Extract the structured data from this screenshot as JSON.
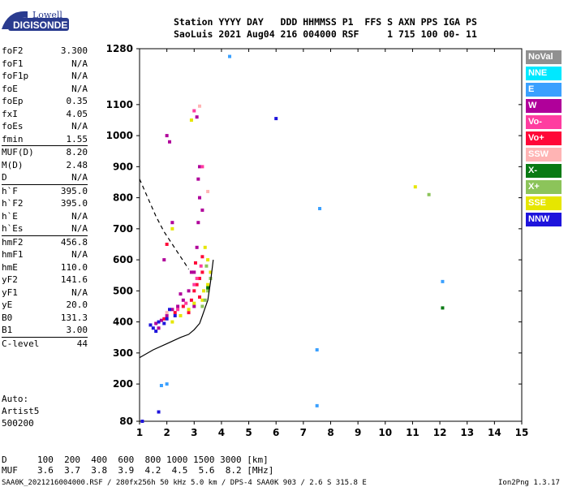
{
  "logo": {
    "line1": "Lowell",
    "line2": "DIGISONDE"
  },
  "header": {
    "labels": "Station YYYY DAY   DDD HHMMSS P1  FFS S AXN PPS IGA PS",
    "values": "SaoLuis 2021 Aug04 216 004000 RSF     1 715 100 00- 11"
  },
  "params": [
    {
      "name": "foF2",
      "value": "3.300"
    },
    {
      "name": "foF1",
      "value": "N/A"
    },
    {
      "name": "foF1p",
      "value": "N/A"
    },
    {
      "name": "foE",
      "value": "N/A"
    },
    {
      "name": "foEp",
      "value": "0.35"
    },
    {
      "name": "fxI",
      "value": "4.05"
    },
    {
      "name": "foEs",
      "value": "N/A"
    },
    {
      "name": "fmin",
      "value": "1.55"
    },
    {
      "name": "MUF(D)",
      "value": "8.20",
      "sep": true
    },
    {
      "name": "M(D)",
      "value": "2.48"
    },
    {
      "name": "D",
      "value": "N/A"
    },
    {
      "name": "h`F",
      "value": "395.0",
      "sep": true
    },
    {
      "name": "h`F2",
      "value": "395.0"
    },
    {
      "name": "h`E",
      "value": "N/A"
    },
    {
      "name": "h`Es",
      "value": "N/A"
    },
    {
      "name": "hmF2",
      "value": "456.8",
      "sep": true
    },
    {
      "name": "hmF1",
      "value": "N/A"
    },
    {
      "name": "hmE",
      "value": "110.0"
    },
    {
      "name": "yF2",
      "value": "141.6"
    },
    {
      "name": "yF1",
      "value": "N/A"
    },
    {
      "name": "yE",
      "value": "20.0"
    },
    {
      "name": "B0",
      "value": "131.3"
    },
    {
      "name": "B1",
      "value": "3.00"
    },
    {
      "name": "C-level",
      "value": "44",
      "sep": true
    }
  ],
  "auto": {
    "line1": "Auto:",
    "line2": "Artist5",
    "line3": "500200"
  },
  "legend": [
    {
      "label": "NoVal",
      "color": "#909090"
    },
    {
      "label": "NNE",
      "color": "#00e8ff"
    },
    {
      "label": "E",
      "color": "#3aa0ff"
    },
    {
      "label": "W",
      "color": "#b0009a"
    },
    {
      "label": "Vo-",
      "color": "#ff3ca0"
    },
    {
      "label": "Vo+",
      "color": "#ff0838"
    },
    {
      "label": "SSW",
      "color": "#ffb4b4"
    },
    {
      "label": "X-",
      "color": "#0a7a14"
    },
    {
      "label": "X+",
      "color": "#8cc45a"
    },
    {
      "label": "SSE",
      "color": "#e6e600"
    },
    {
      "label": "NNW",
      "color": "#1e14dc"
    }
  ],
  "footer": {
    "d_label": "D",
    "d_values": "100  200  400  600  800 1000 1500 3000 [km]",
    "muf_label": "MUF",
    "muf_values": "3.6  3.7  3.8  3.9  4.2  4.5  5.6  8.2 [MHz]",
    "file": "SAA0K_2021216004000.RSF / 280fx256h 50 kHz 5.0 km / DPS-4 SAA0K 903 / 2.6 S 315.8 E",
    "version": "Ion2Png 1.3.17"
  },
  "chart_data": {
    "type": "scatter",
    "title": "",
    "xlabel": "",
    "ylabel": "",
    "xlim": [
      1,
      15
    ],
    "ylim": [
      80,
      1280
    ],
    "xticks": [
      1,
      2,
      3,
      4,
      5,
      6,
      7,
      8,
      9,
      10,
      11,
      12,
      13,
      14,
      15
    ],
    "yticks": [
      80,
      200,
      300,
      400,
      500,
      600,
      700,
      800,
      900,
      1000,
      1100,
      1280
    ],
    "grid": false,
    "legend_position": "right",
    "series": [
      {
        "name": "W",
        "color": "#b0009a",
        "points": [
          [
            1.6,
            395
          ],
          [
            1.8,
            405
          ],
          [
            2.0,
            420
          ],
          [
            2.2,
            440
          ],
          [
            2.4,
            450
          ],
          [
            2.6,
            470
          ],
          [
            2.8,
            500
          ],
          [
            3.0,
            560
          ],
          [
            3.1,
            640
          ],
          [
            3.15,
            720
          ],
          [
            3.2,
            800
          ],
          [
            3.15,
            860
          ],
          [
            3.2,
            900
          ],
          [
            2.1,
            980
          ],
          [
            2.0,
            1000
          ],
          [
            2.2,
            720
          ],
          [
            3.1,
            1060
          ],
          [
            2.9,
            560
          ],
          [
            1.9,
            600
          ],
          [
            2.5,
            490
          ],
          [
            3.3,
            760
          ],
          [
            3.0,
            450
          ],
          [
            1.7,
            380
          ]
        ]
      },
      {
        "name": "Vo+",
        "color": "#ff0838",
        "points": [
          [
            1.9,
            410
          ],
          [
            2.3,
            430
          ],
          [
            2.6,
            450
          ],
          [
            2.9,
            470
          ],
          [
            3.0,
            500
          ],
          [
            3.1,
            520
          ],
          [
            3.2,
            540
          ],
          [
            3.3,
            560
          ],
          [
            2.8,
            430
          ],
          [
            3.2,
            480
          ],
          [
            3.05,
            590
          ],
          [
            3.3,
            610
          ],
          [
            2.0,
            650
          ]
        ]
      },
      {
        "name": "Vo-",
        "color": "#ff3ca0",
        "points": [
          [
            2.4,
            440
          ],
          [
            2.7,
            460
          ],
          [
            3.0,
            520
          ],
          [
            3.25,
            580
          ],
          [
            3.1,
            540
          ],
          [
            3.3,
            900
          ],
          [
            3.0,
            1080
          ]
        ]
      },
      {
        "name": "SSE",
        "color": "#e6e600",
        "points": [
          [
            2.2,
            400
          ],
          [
            2.5,
            420
          ],
          [
            2.8,
            440
          ],
          [
            3.0,
            460
          ],
          [
            3.3,
            470
          ],
          [
            3.5,
            520
          ],
          [
            3.6,
            560
          ],
          [
            3.5,
            600
          ],
          [
            3.4,
            640
          ],
          [
            2.9,
            1050
          ],
          [
            2.2,
            700
          ],
          [
            3.35,
            500
          ],
          [
            11.1,
            835
          ]
        ]
      },
      {
        "name": "X+",
        "color": "#8cc45a",
        "points": [
          [
            3.4,
            470
          ],
          [
            3.5,
            500
          ],
          [
            3.6,
            540
          ],
          [
            3.3,
            450
          ],
          [
            3.45,
            580
          ],
          [
            11.6,
            810
          ]
        ]
      },
      {
        "name": "X-",
        "color": "#0a7a14",
        "points": [
          [
            12.1,
            445
          ],
          [
            3.5,
            510
          ]
        ]
      },
      {
        "name": "NNW",
        "color": "#1e14dc",
        "points": [
          [
            1.4,
            390
          ],
          [
            1.5,
            380
          ],
          [
            1.7,
            400
          ],
          [
            2.0,
            410
          ],
          [
            2.3,
            420
          ],
          [
            1.6,
            370
          ],
          [
            1.1,
            80
          ],
          [
            1.7,
            110
          ],
          [
            6.0,
            1055
          ],
          [
            2.1,
            440
          ],
          [
            1.9,
            395
          ]
        ]
      },
      {
        "name": "E",
        "color": "#3aa0ff",
        "points": [
          [
            4.3,
            1255
          ],
          [
            7.6,
            765
          ],
          [
            7.5,
            310
          ],
          [
            7.5,
            130
          ],
          [
            1.8,
            195
          ],
          [
            12.1,
            530
          ],
          [
            2.0,
            200
          ]
        ]
      },
      {
        "name": "SSW",
        "color": "#ffb4b4",
        "points": [
          [
            3.2,
            1095
          ],
          [
            2.0,
            430
          ],
          [
            3.5,
            820
          ]
        ]
      }
    ],
    "curves": [
      {
        "name": "profile",
        "style": "solid",
        "points": [
          [
            1,
            285
          ],
          [
            1.5,
            310
          ],
          [
            2.0,
            330
          ],
          [
            2.5,
            350
          ],
          [
            2.8,
            360
          ],
          [
            3.0,
            375
          ],
          [
            3.2,
            395
          ],
          [
            3.3,
            420
          ],
          [
            3.5,
            470
          ],
          [
            3.6,
            530
          ],
          [
            3.7,
            600
          ]
        ]
      },
      {
        "name": "muf",
        "style": "dashed",
        "points": [
          [
            1,
            860
          ],
          [
            1.3,
            800
          ],
          [
            1.6,
            740
          ],
          [
            1.9,
            690
          ],
          [
            2.2,
            650
          ],
          [
            2.5,
            610
          ],
          [
            2.8,
            570
          ]
        ]
      }
    ]
  }
}
